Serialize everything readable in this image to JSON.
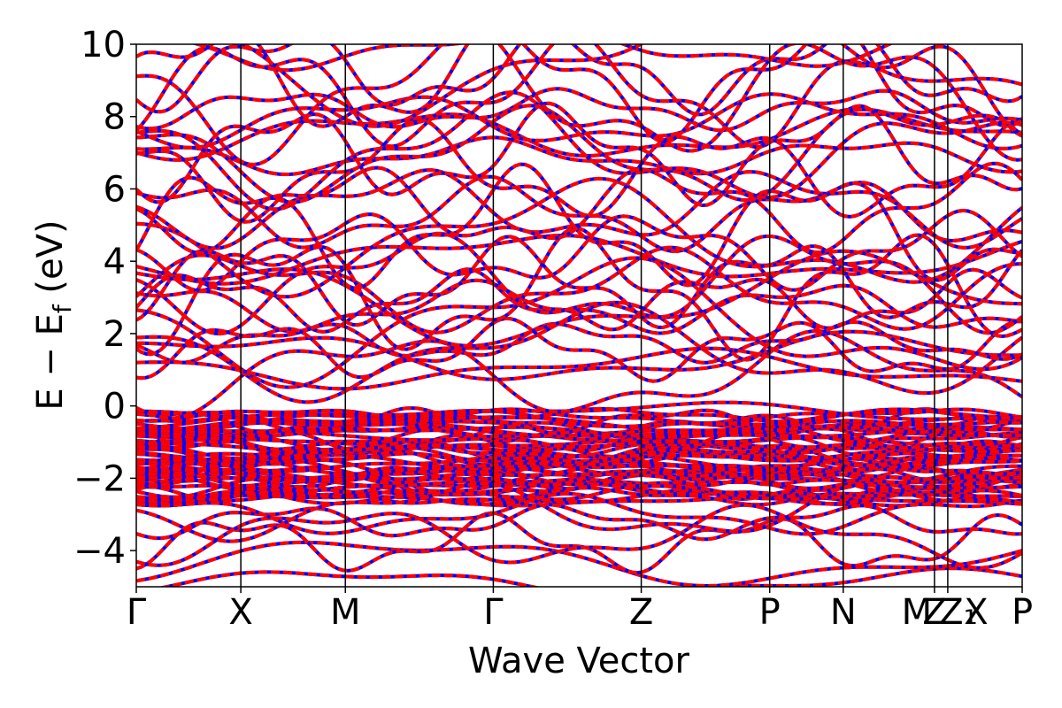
{
  "chart_data": {
    "type": "line",
    "title": "",
    "xlabel": "Wave Vector",
    "ylabel_main": "E − E",
    "ylabel_sub": "f",
    "ylabel_unit": " (eV)",
    "ylim": [
      -5,
      10
    ],
    "yticks": [
      -4,
      -2,
      0,
      2,
      4,
      6,
      8,
      10
    ],
    "ytick_labels": [
      "−4",
      "−2",
      "0",
      "2",
      "4",
      "6",
      "8",
      "10"
    ],
    "path_segments": [
      {
        "from": "Γ",
        "to": "X",
        "length": 0.118
      },
      {
        "from": "X",
        "to": "M",
        "length": 0.118
      },
      {
        "from": "M",
        "to": "Γ",
        "length": 0.167
      },
      {
        "from": "Γ",
        "to": "Z",
        "length": 0.167
      },
      {
        "from": "Z",
        "to": "P",
        "length": 0.145
      },
      {
        "from": "P",
        "to": "N",
        "length": 0.083
      },
      {
        "from": "N",
        "to": "M",
        "length": 0.103
      },
      {
        "from": "M",
        "to": "Z",
        "length": 0.015
      },
      {
        "from": "Z₁",
        "to": "X",
        "length": 0.084
      }
    ],
    "kpoint_labels": [
      "Γ",
      "X",
      "M",
      "Γ",
      "Z",
      "P",
      "N",
      "M",
      "Z",
      "Z₁",
      "X",
      "P"
    ],
    "grid": false,
    "legend": "none",
    "series_styles": [
      {
        "color": "#ff0000",
        "style": "solid"
      },
      {
        "color": "#0000ff",
        "style": "dashed"
      }
    ],
    "band_summary": {
      "dense_valence_manifold": {
        "from": -2.6,
        "to": -0.2
      },
      "lower_bands_at_Gamma": [
        -4.9,
        -4.3,
        -3.8,
        -3.6,
        -3.2,
        -3.0,
        -2.9
      ],
      "upper_bands_at_Gamma": [
        0.85,
        1.5,
        2.9,
        3.4,
        4.1,
        4.3,
        4.7,
        5.3,
        5.5,
        6.5,
        6.9,
        7.5,
        7.9,
        8.2,
        8.7,
        9.0,
        9.3
      ]
    }
  }
}
